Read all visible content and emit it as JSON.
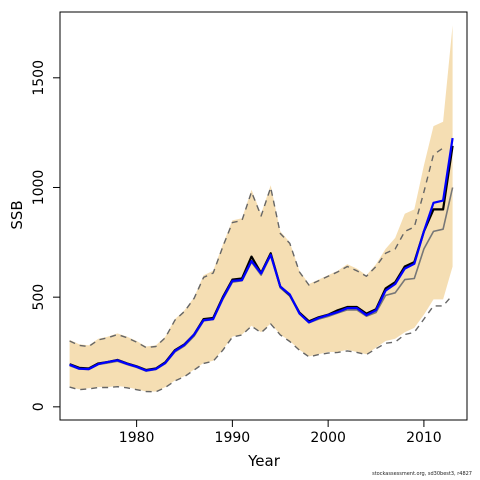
{
  "chart_data": {
    "type": "line",
    "title": "",
    "xlabel": "Year",
    "ylabel": "SSB",
    "xlim": [
      1972,
      2014.5
    ],
    "ylim": [
      -60,
      1800
    ],
    "x_ticks": [
      1980,
      1990,
      2000,
      2010
    ],
    "y_ticks": [
      0,
      500,
      1000,
      1500
    ],
    "grid": false,
    "colors": {
      "band": "#f5deb3",
      "estimate": "#000000",
      "retro_estimate": "#0000ff",
      "alt_estimate": "#777777",
      "alt_bounds": "#666666"
    },
    "x": [
      1973,
      1974,
      1975,
      1976,
      1977,
      1978,
      1979,
      1980,
      1981,
      1982,
      1983,
      1984,
      1985,
      1986,
      1987,
      1988,
      1989,
      1990,
      1991,
      1992,
      1993,
      1994,
      1995,
      1996,
      1997,
      1998,
      1999,
      2000,
      2001,
      2002,
      2003,
      2004,
      2005,
      2006,
      2007,
      2008,
      2009,
      2010,
      2011,
      2012,
      2013
    ],
    "band_upper": [
      305,
      285,
      280,
      310,
      320,
      335,
      320,
      300,
      275,
      280,
      320,
      400,
      440,
      500,
      600,
      620,
      740,
      850,
      860,
      990,
      880,
      1010,
      800,
      750,
      620,
      560,
      580,
      600,
      620,
      650,
      630,
      600,
      650,
      720,
      770,
      880,
      900,
      1100,
      1280,
      1300,
      1740
    ],
    "band_lower": [
      90,
      80,
      85,
      90,
      90,
      95,
      90,
      80,
      70,
      70,
      90,
      120,
      140,
      170,
      200,
      210,
      260,
      320,
      330,
      370,
      340,
      380,
      330,
      300,
      260,
      230,
      240,
      250,
      250,
      260,
      250,
      240,
      270,
      300,
      310,
      340,
      360,
      420,
      490,
      490,
      640
    ],
    "series": [
      {
        "values": [
          195,
          178,
          175,
          198,
          205,
          214,
          198,
          185,
          168,
          175,
          203,
          258,
          285,
          330,
          400,
          405,
          500,
          580,
          585,
          685,
          610,
          700,
          548,
          510,
          430,
          390,
          408,
          420,
          440,
          455,
          455,
          425,
          445,
          540,
          568,
          640,
          660,
          800,
          900,
          900,
          1190
        ]
      },
      {
        "values": [
          192,
          174,
          172,
          195,
          205,
          212,
          196,
          183,
          165,
          172,
          200,
          255,
          283,
          330,
          395,
          400,
          495,
          574,
          578,
          665,
          608,
          693,
          548,
          512,
          426,
          385,
          405,
          418,
          432,
          450,
          450,
          418,
          440,
          530,
          560,
          630,
          652,
          800,
          930,
          940,
          1225
        ]
      },
      {
        "values": [
          188,
          172,
          170,
          193,
          200,
          208,
          193,
          180,
          163,
          170,
          197,
          250,
          278,
          322,
          392,
          398,
          490,
          568,
          575,
          660,
          600,
          690,
          542,
          505,
          424,
          383,
          400,
          412,
          428,
          442,
          442,
          413,
          430,
          508,
          520,
          580,
          585,
          720,
          800,
          810,
          1000
        ]
      },
      {
        "values": [
          90,
          78,
          82,
          88,
          88,
          92,
          87,
          78,
          70,
          68,
          88,
          118,
          138,
          168,
          198,
          208,
          258,
          318,
          328,
          368,
          338,
          378,
          328,
          298,
          258,
          228,
          238,
          245,
          248,
          255,
          248,
          238,
          265,
          290,
          295,
          330,
          340,
          400,
          460,
          460,
          510
        ]
      },
      {
        "values": [
          300,
          280,
          275,
          305,
          315,
          330,
          315,
          295,
          270,
          275,
          315,
          395,
          435,
          495,
          590,
          610,
          730,
          840,
          850,
          980,
          870,
          1000,
          790,
          745,
          615,
          555,
          575,
          595,
          615,
          640,
          620,
          595,
          640,
          700,
          720,
          800,
          820,
          980,
          1150,
          1180,
          1440
        ]
      }
    ]
  },
  "footer": "stockassessment.org, sd30best3, r4827"
}
